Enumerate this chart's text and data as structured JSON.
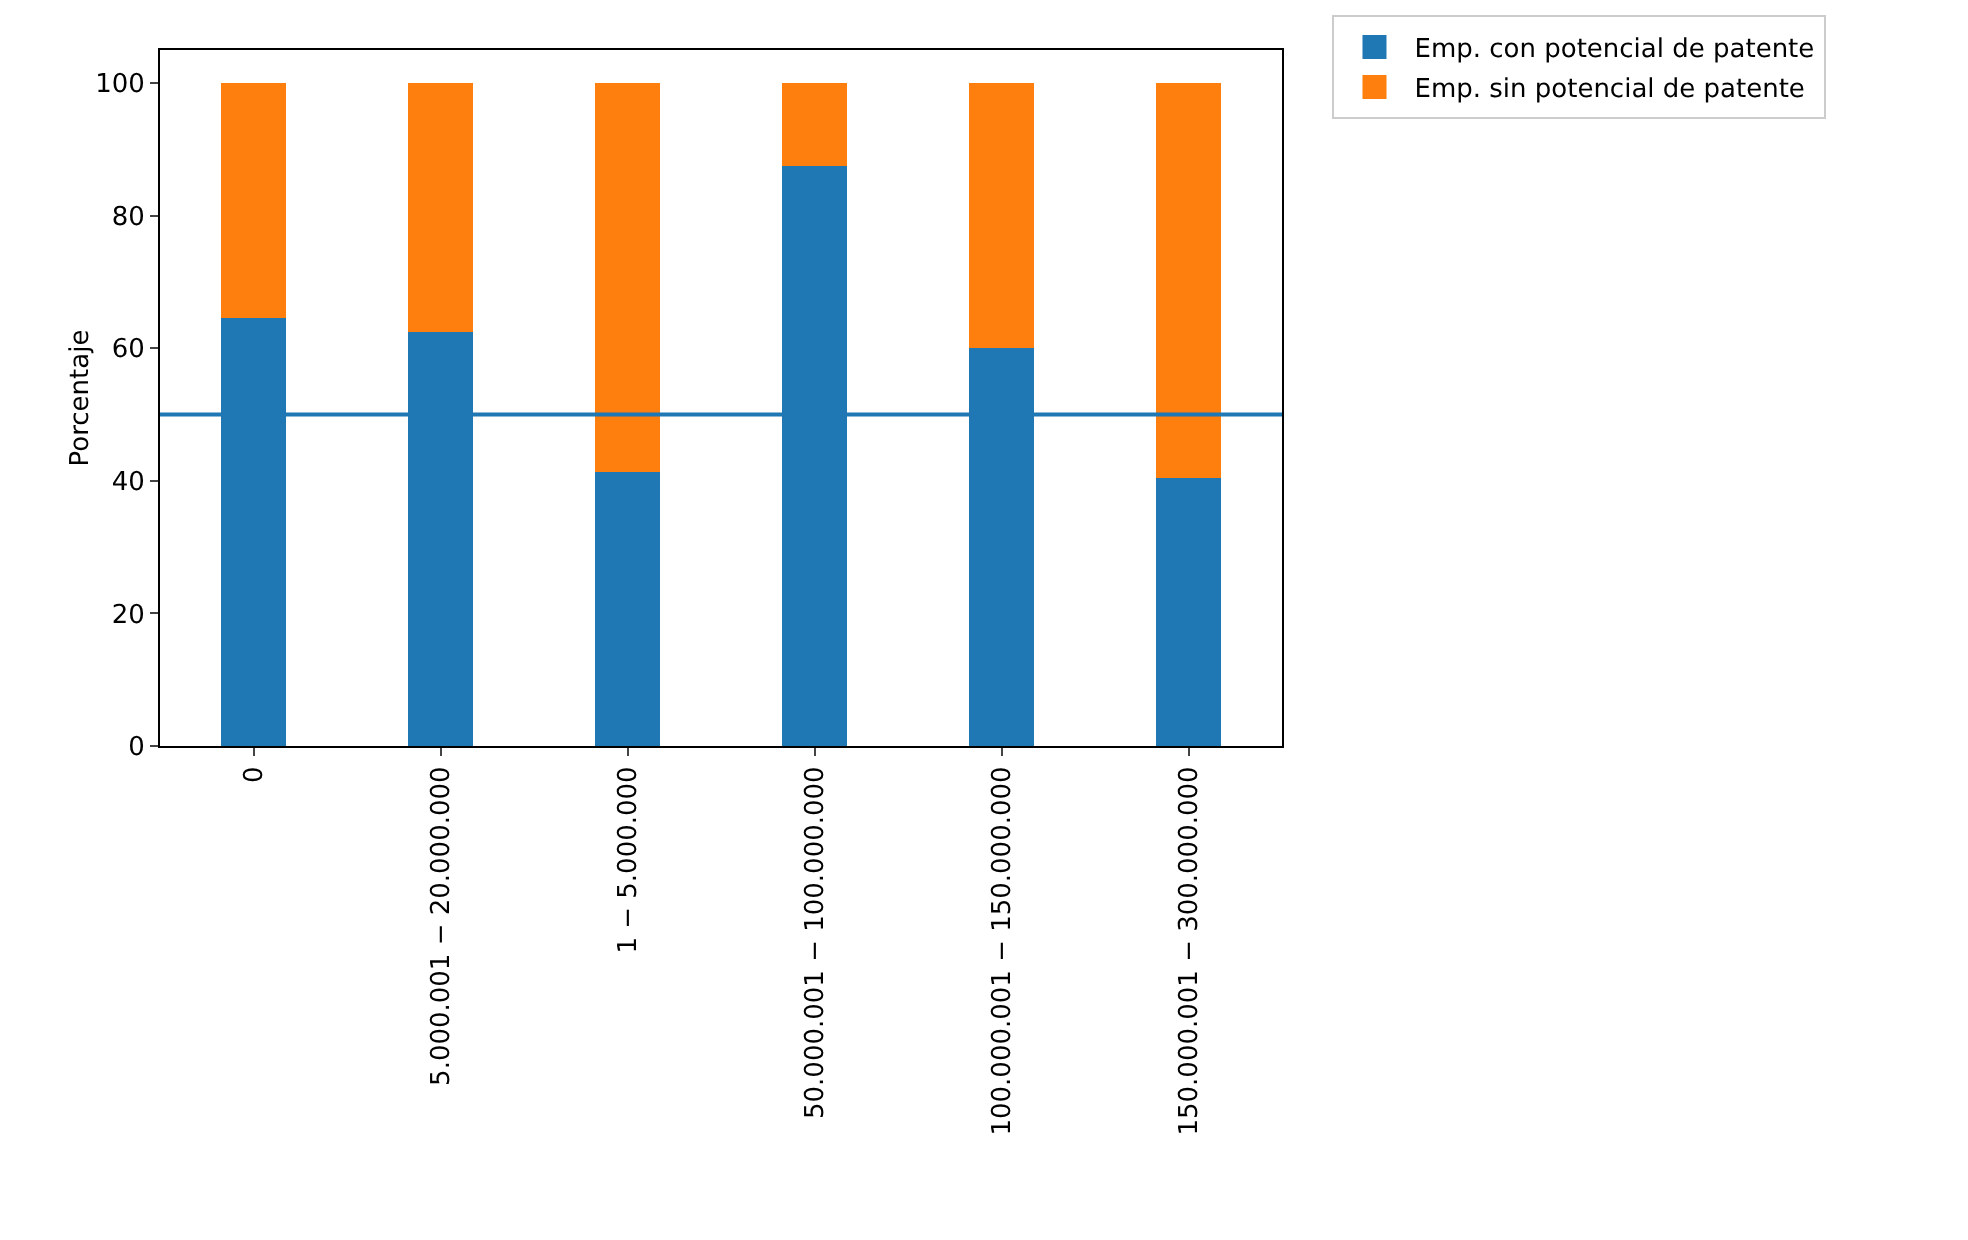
{
  "chart_data": {
    "type": "bar",
    "stacked": true,
    "ylabel": "Porcentaje",
    "categories": [
      "0",
      "5.000.001 − 20.000.000",
      "1 − 5.000.000",
      "50.000.001 − 100.000.000",
      "100.000.001 − 150.000.000",
      "150.000.001 − 300.000.000"
    ],
    "series": [
      {
        "name": "Emp. con potencial de patente",
        "color": "#1f77b4",
        "values": [
          64.5,
          62.5,
          41.3,
          87.5,
          60,
          40.5
        ]
      },
      {
        "name": "Emp. sin potencial de patente",
        "color": "#ff7f0e",
        "values": [
          35.5,
          37.5,
          58.7,
          12.5,
          40,
          59.5
        ]
      }
    ],
    "ylim": [
      0,
      105
    ],
    "yticks": [
      0,
      20,
      40,
      60,
      80,
      100
    ],
    "grid": false,
    "legend": "top right",
    "ref_lines": [
      {
        "axis": "y",
        "value": 50,
        "color": "#1f77b4"
      }
    ]
  }
}
